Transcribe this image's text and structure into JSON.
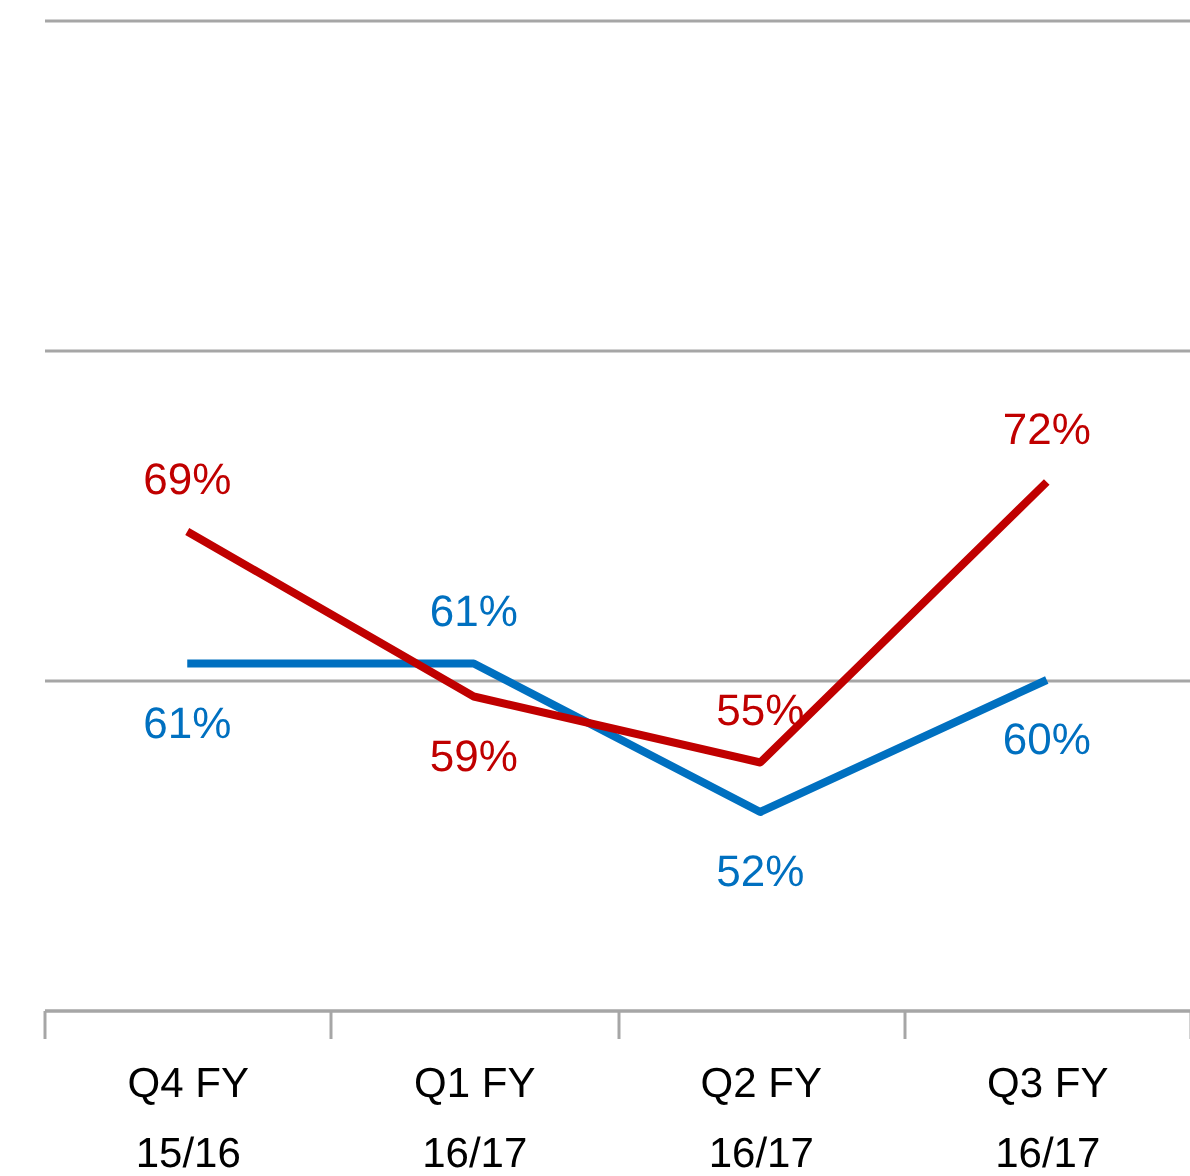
{
  "chart_data": {
    "type": "line",
    "categories": [
      "Q4 FY\n15/16",
      "Q1 FY\n16/17",
      "Q2 FY\n16/17",
      "Q3 FY\n16/17"
    ],
    "series": [
      {
        "color": "#0070c0",
        "values": [
          61,
          61,
          52,
          60
        ],
        "value_labels": [
          "61%",
          "61%",
          "52%",
          "60%"
        ]
      },
      {
        "color": "#c00000",
        "values": [
          69,
          59,
          55,
          72
        ],
        "value_labels": [
          "69%",
          "59%",
          "55%",
          "72%"
        ]
      }
    ],
    "ylim": [
      40,
      100
    ],
    "yticks": [
      {
        "value": 40,
        "label": null
      },
      {
        "value": 60,
        "label": null
      },
      {
        "value": 80,
        "label": null
      },
      {
        "value": 100,
        "label": null
      }
    ],
    "grid": "y",
    "tick_labels": "x",
    "marker": "none",
    "line_style": "solid"
  }
}
